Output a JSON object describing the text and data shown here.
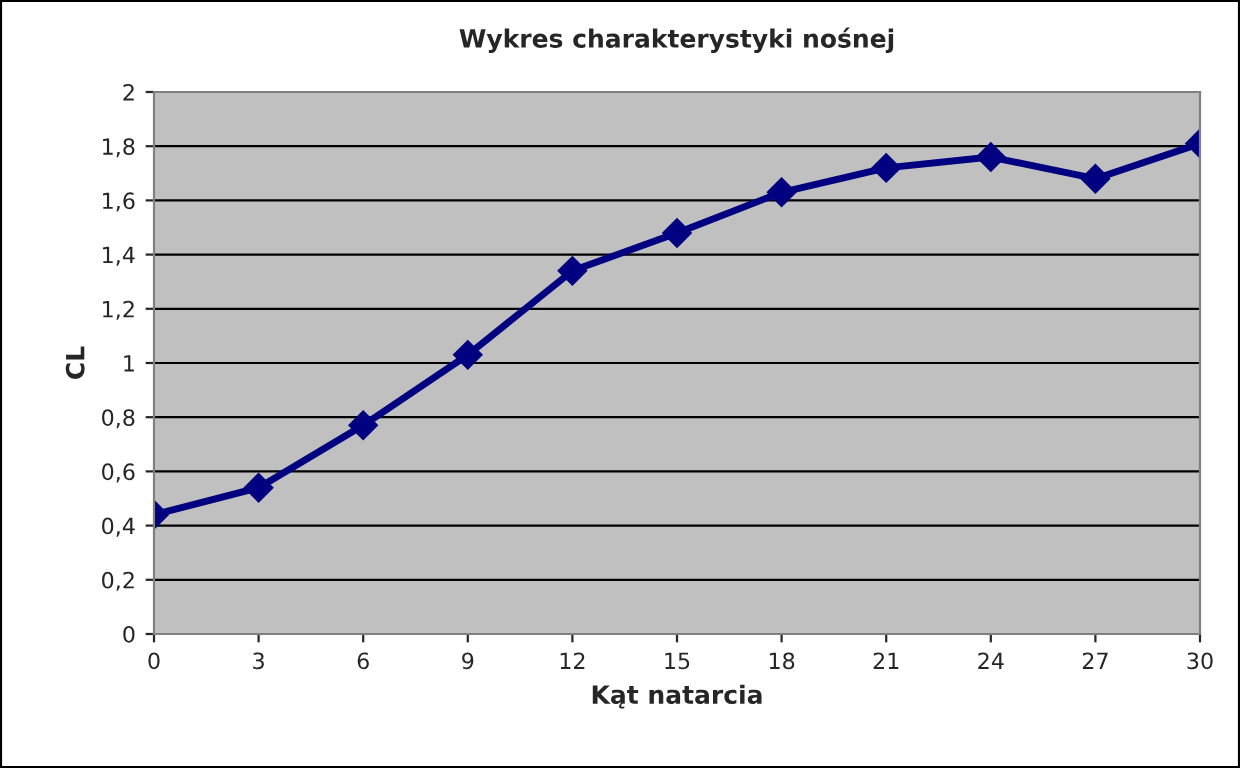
{
  "chart_data": {
    "type": "line",
    "title": "Wykres charakterystyki nośnej",
    "xlabel": "Kąt natarcia",
    "ylabel": "CL",
    "x": [
      0,
      3,
      6,
      9,
      12,
      15,
      18,
      21,
      24,
      27,
      30
    ],
    "series": [
      {
        "color": "#000080",
        "values": [
          0.44,
          0.54,
          0.77,
          1.03,
          1.34,
          1.48,
          1.63,
          1.72,
          1.76,
          1.68,
          1.81
        ]
      }
    ],
    "xlim": [
      0,
      30
    ],
    "xticks": [
      0,
      3,
      6,
      9,
      12,
      15,
      18,
      21,
      24,
      27,
      30
    ],
    "ylim": [
      0,
      2
    ],
    "yticks": [
      0,
      {
        "value": 0.2,
        "label": "0,2"
      },
      {
        "value": 0.4,
        "label": "0,4"
      },
      {
        "value": 0.6,
        "label": "0,6"
      },
      {
        "value": 0.8,
        "label": "0,8"
      },
      1,
      {
        "value": 1.2,
        "label": "1,2"
      },
      {
        "value": 1.4,
        "label": "1,4"
      },
      {
        "value": 1.6,
        "label": "1,6"
      },
      {
        "value": 1.8,
        "label": "1,8"
      },
      2
    ],
    "grid": "y",
    "legend": false,
    "marker": "diamond",
    "line_style": "solid"
  }
}
